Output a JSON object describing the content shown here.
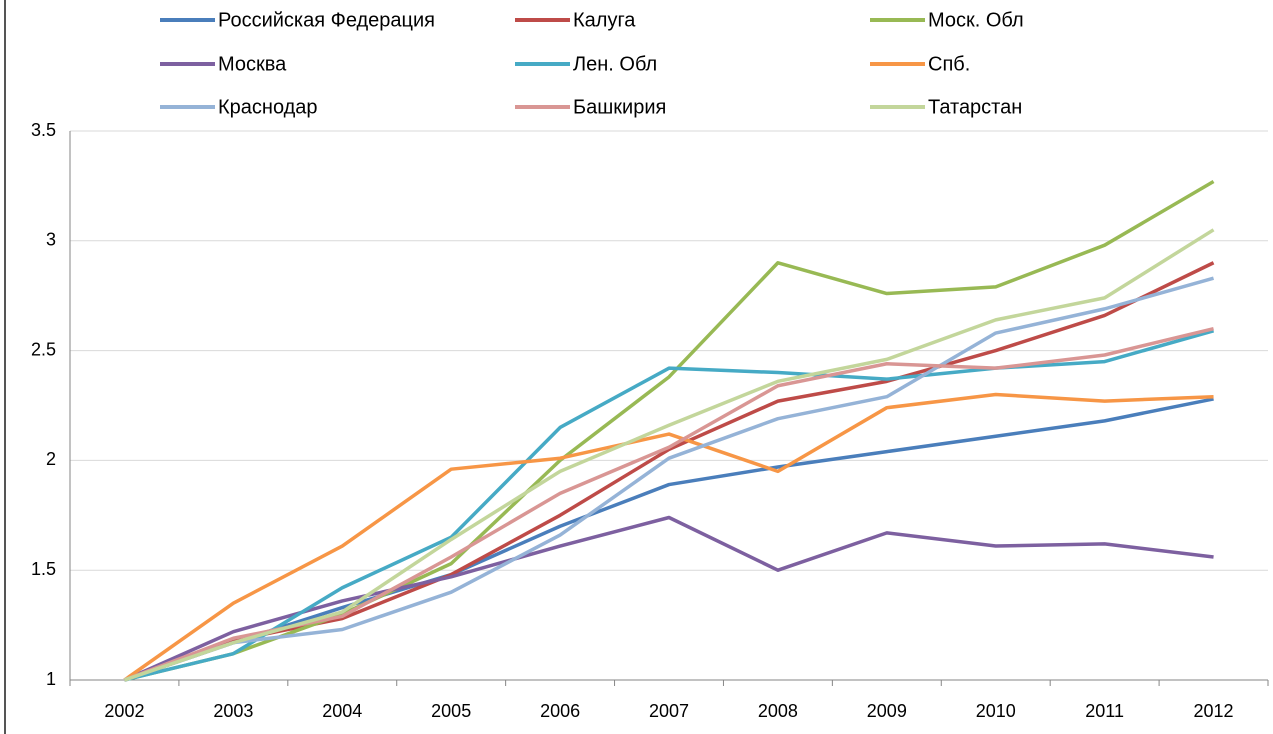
{
  "chart_data": {
    "type": "line",
    "categories": [
      "2002",
      "2003",
      "2004",
      "2005",
      "2006",
      "2007",
      "2008",
      "2009",
      "2010",
      "2011",
      "2012"
    ],
    "series": [
      {
        "name": "Российская Федерация",
        "color": "#4a7ebb",
        "values": [
          1,
          1.17,
          1.33,
          1.48,
          1.7,
          1.89,
          1.97,
          2.04,
          2.11,
          2.18,
          2.28
        ]
      },
      {
        "name": "Калуга",
        "color": "#be4b48",
        "values": [
          1,
          1.18,
          1.28,
          1.48,
          1.75,
          2.05,
          2.27,
          2.36,
          2.5,
          2.66,
          2.9
        ]
      },
      {
        "name": "Моск. Обл",
        "color": "#98b954",
        "values": [
          1,
          1.12,
          1.3,
          1.53,
          2.0,
          2.38,
          2.9,
          2.76,
          2.79,
          2.98,
          3.27
        ]
      },
      {
        "name": "Москва",
        "color": "#7d60a0",
        "values": [
          1,
          1.22,
          1.36,
          1.47,
          1.61,
          1.74,
          1.5,
          1.67,
          1.61,
          1.62,
          1.56
        ]
      },
      {
        "name": "Лен. Обл",
        "color": "#46aac5",
        "values": [
          1,
          1.12,
          1.42,
          1.65,
          2.15,
          2.42,
          2.4,
          2.37,
          2.42,
          2.45,
          2.59
        ]
      },
      {
        "name": "Спб.",
        "color": "#f79646",
        "values": [
          1,
          1.35,
          1.61,
          1.96,
          2.01,
          2.12,
          1.95,
          2.24,
          2.3,
          2.27,
          2.29
        ]
      },
      {
        "name": "Краснодар",
        "color": "#95b3d7",
        "values": [
          1,
          1.17,
          1.23,
          1.4,
          1.66,
          2.01,
          2.19,
          2.29,
          2.58,
          2.69,
          2.83
        ]
      },
      {
        "name": "Башкирия",
        "color": "#d99694",
        "values": [
          1,
          1.19,
          1.29,
          1.56,
          1.85,
          2.06,
          2.34,
          2.44,
          2.42,
          2.48,
          2.6
        ]
      },
      {
        "name": "Татарстан",
        "color": "#c3d69b",
        "values": [
          1,
          1.17,
          1.31,
          1.64,
          1.95,
          2.16,
          2.36,
          2.46,
          2.64,
          2.74,
          3.05
        ]
      }
    ],
    "ylim": [
      1,
      3.5
    ],
    "yticks": [
      1,
      1.5,
      2,
      2.5,
      3,
      3.5
    ],
    "grid": true,
    "legend": "top"
  }
}
